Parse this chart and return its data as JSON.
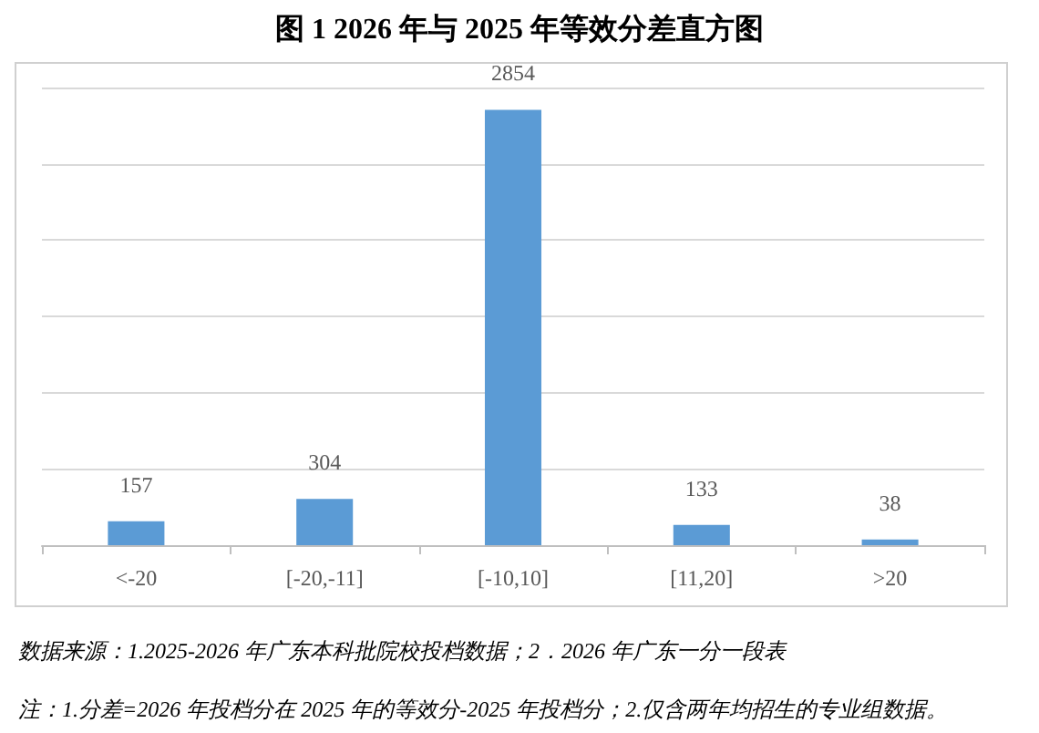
{
  "chart_data": {
    "type": "bar",
    "title": "图 1 2026 年与 2025 年等效分差直方图",
    "categories": [
      "<-20",
      "[-20,-11]",
      "[-10,10]",
      "[11,20]",
      ">20"
    ],
    "values": [
      157,
      304,
      2854,
      133,
      38
    ],
    "color": "#5b9bd5",
    "ylim": [
      0,
      3000
    ],
    "yticks": [
      {
        "value": 0,
        "label": null
      },
      {
        "value": 500,
        "label": null
      },
      {
        "value": 1000,
        "label": null
      },
      {
        "value": 1500,
        "label": null
      },
      {
        "value": 2000,
        "label": null
      },
      {
        "value": 2500,
        "label": null
      },
      {
        "value": 3000,
        "label": null
      }
    ],
    "tick_labels": "x",
    "grid": "y",
    "data_labels": true,
    "annotations": [
      "数据来源：1.2025-2026 年广东本科批院校投档数据；2．2026 年广东一分一段表",
      "注：1.分差=2026 年投档分在 2025 年的等效分-2025 年投档分；2.仅含两年均招生的专业组数据。"
    ]
  }
}
